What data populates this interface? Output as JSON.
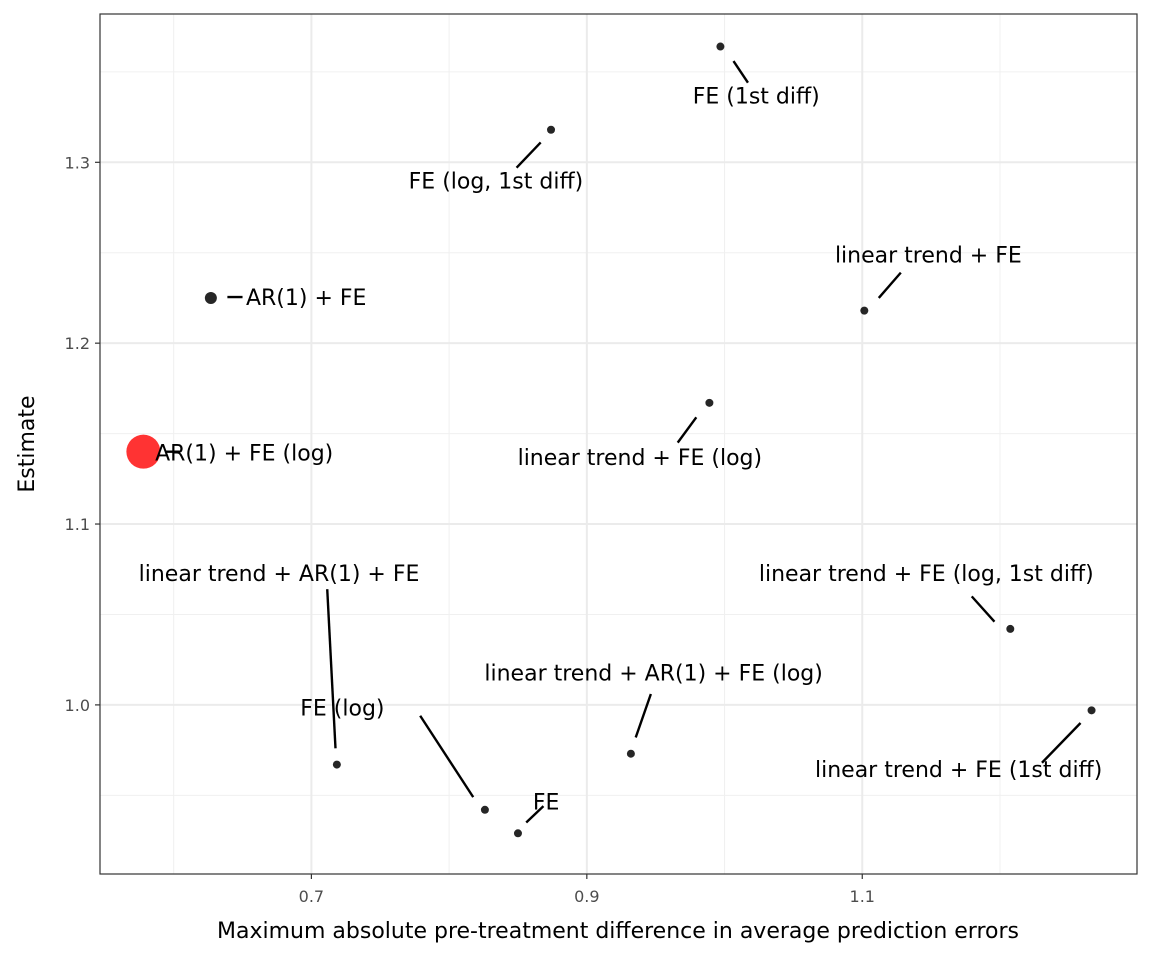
{
  "chart_data": {
    "type": "scatter",
    "xlabel": "Maximum absolute pre-treatment difference in average prediction errors",
    "ylabel": "Estimate",
    "xlim": [
      0.5465,
      1.2995
    ],
    "ylim": [
      0.9065,
      1.382
    ],
    "x_ticks": [
      0.7,
      0.9,
      1.1
    ],
    "x_tick_labels": [
      "0.7",
      "0.9",
      "1.1"
    ],
    "x_minor_ticks": [
      0.6,
      0.8,
      1.0,
      1.2
    ],
    "y_ticks": [
      1.0,
      1.1,
      1.2,
      1.3
    ],
    "y_tick_labels": [
      "1.0",
      "1.1",
      "1.2",
      "1.3"
    ],
    "y_minor_ticks": [
      0.95,
      1.05,
      1.15,
      1.25,
      1.35
    ],
    "grid": true,
    "theme": "bw",
    "highlight_color": "#ff0000",
    "point_color": "#000000",
    "points": [
      {
        "label": "FE (1st diff)",
        "x": 0.997,
        "y": 1.364,
        "highlight": false,
        "lx": 1.023,
        "ly": 1.337,
        "anchor": "middle",
        "seg": [
          1.0065,
          1.356,
          1.017,
          1.344
        ]
      },
      {
        "label": "FE (log, 1st diff)",
        "x": 0.874,
        "y": 1.318,
        "highlight": false,
        "lx": 0.834,
        "ly": 1.29,
        "anchor": "middle",
        "seg": [
          0.8665,
          1.311,
          0.849,
          1.297
        ]
      },
      {
        "label": "linear trend + FE",
        "x": 1.1015,
        "y": 1.218,
        "highlight": false,
        "lx": 1.148,
        "ly": 1.249,
        "anchor": "middle",
        "seg": [
          1.112,
          1.225,
          1.128,
          1.239
        ]
      },
      {
        "label": "AR(1) + FE",
        "x": 0.627,
        "y": 1.225,
        "highlight": false,
        "lx": 0.6525,
        "ly": 1.2255,
        "anchor": "start",
        "seg": [
          0.639,
          1.2255,
          0.65,
          1.2255
        ]
      },
      {
        "label": "AR(1) + FE (log)",
        "x": 0.578,
        "y": 1.14,
        "highlight": true,
        "lx": 0.5865,
        "ly": 1.1395,
        "anchor": "start",
        "seg": [
          0.594,
          1.14,
          0.6045,
          1.14
        ]
      },
      {
        "label": "linear trend + FE (log)",
        "x": 0.989,
        "y": 1.167,
        "highlight": false,
        "lx": 0.9385,
        "ly": 1.137,
        "anchor": "middle",
        "seg": [
          0.9795,
          1.159,
          0.966,
          1.145
        ]
      },
      {
        "label": "linear trend + AR(1) + FE",
        "x": 0.7185,
        "y": 0.967,
        "highlight": false,
        "lx": 0.6765,
        "ly": 1.073,
        "anchor": "middle",
        "seg": [
          0.7175,
          0.976,
          0.7115,
          1.064
        ]
      },
      {
        "label": "linear trend + FE (log, 1st diff)",
        "x": 1.2075,
        "y": 1.042,
        "highlight": false,
        "lx": 1.1465,
        "ly": 1.073,
        "anchor": "middle",
        "seg": [
          1.196,
          1.046,
          1.1795,
          1.06
        ]
      },
      {
        "label": "linear trend + AR(1) + FE (log)",
        "x": 0.932,
        "y": 0.973,
        "highlight": false,
        "lx": 0.9485,
        "ly": 1.018,
        "anchor": "middle",
        "seg": [
          0.9355,
          0.982,
          0.9465,
          1.006
        ]
      },
      {
        "label": "FE (log)",
        "x": 0.826,
        "y": 0.942,
        "highlight": false,
        "lx": 0.7225,
        "ly": 0.9985,
        "anchor": "middle",
        "seg": [
          0.8175,
          0.949,
          0.779,
          0.994
        ]
      },
      {
        "label": "FE",
        "x": 0.85,
        "y": 0.929,
        "highlight": false,
        "lx": 0.8705,
        "ly": 0.9465,
        "anchor": "middle",
        "seg": [
          0.856,
          0.935,
          0.8685,
          0.944
        ]
      },
      {
        "label": "linear trend + FE (1st diff)",
        "x": 1.2665,
        "y": 0.997,
        "highlight": false,
        "lx": 1.17,
        "ly": 0.9645,
        "anchor": "middle",
        "seg": [
          1.2585,
          0.99,
          1.2305,
          0.968
        ]
      }
    ]
  }
}
